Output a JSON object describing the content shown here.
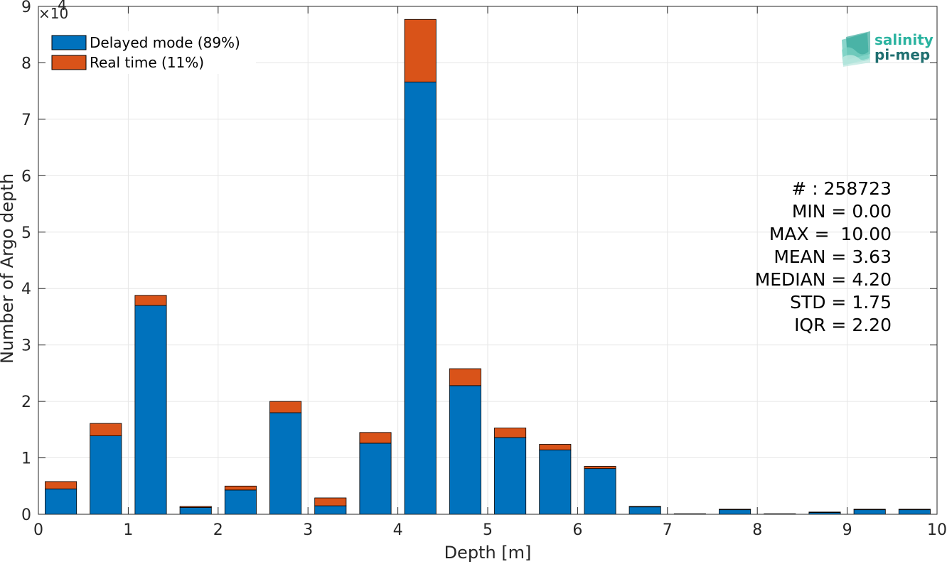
{
  "colors": {
    "delayed": "#0072bd",
    "realtime": "#d95319",
    "axis": "#262626",
    "grid": "#e6e6e6",
    "logo_top": "#2ab3a0",
    "logo_bottom": "#1f6f70"
  },
  "logo": {
    "icon": "salinity-pi-mep-logo-icon",
    "line1": "salinity",
    "line2": "pi-mep"
  },
  "stats": {
    "lines": [
      "# : 258723",
      "MIN = 0.00",
      "MAX =  10.00",
      "MEAN = 3.63",
      "MEDIAN = 4.20",
      "STD = 1.75",
      "IQR = 2.20"
    ]
  },
  "chart_data": {
    "type": "bar",
    "stacked": true,
    "xlabel": "Depth [m]",
    "ylabel": "Number of Argo depth",
    "y_exponent_label": "×10",
    "y_exponent": "4",
    "xlim": [
      0,
      10
    ],
    "ylim": [
      0,
      90000
    ],
    "xticks": [
      "0",
      "1",
      "2",
      "3",
      "4",
      "5",
      "6",
      "7",
      "8",
      "9",
      "10"
    ],
    "yticks": [
      "0",
      "1",
      "2",
      "3",
      "4",
      "5",
      "6",
      "7",
      "8",
      "9"
    ],
    "grid": true,
    "legend_position": "top-left",
    "x": [
      0.25,
      0.75,
      1.25,
      1.75,
      2.25,
      2.75,
      3.25,
      3.75,
      4.25,
      4.75,
      5.25,
      5.75,
      6.25,
      6.75,
      7.25,
      7.75,
      8.25,
      8.75,
      9.25,
      9.75
    ],
    "series": [
      {
        "name": "Delayed mode (89%)",
        "values": [
          4500,
          13900,
          37000,
          1200,
          4300,
          18000,
          1500,
          12600,
          76600,
          22800,
          13600,
          11400,
          8100,
          1300,
          100,
          800,
          100,
          300,
          800,
          800
        ]
      },
      {
        "name": "Real time (11%)",
        "values": [
          1300,
          2200,
          1800,
          200,
          700,
          2000,
          1400,
          1900,
          11100,
          3000,
          1700,
          1000,
          400,
          100,
          0,
          100,
          0,
          100,
          100,
          100
        ]
      }
    ]
  }
}
